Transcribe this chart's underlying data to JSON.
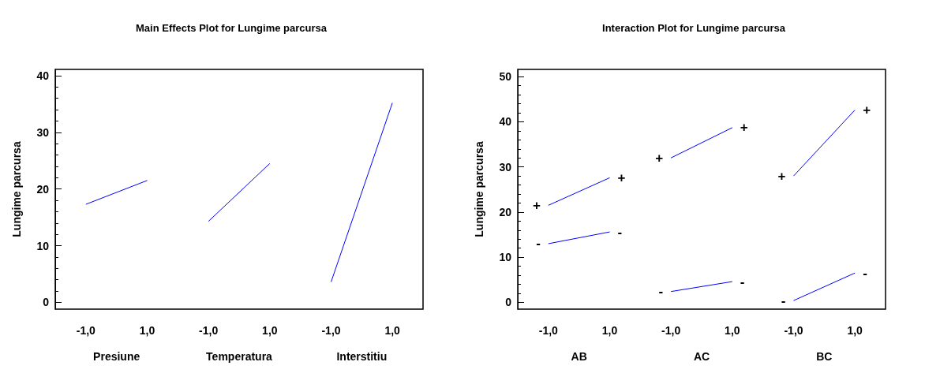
{
  "chart_data": [
    {
      "type": "line",
      "title": "Main Effects Plot for Lungime parcursa",
      "ylabel": "Lungime parcursa",
      "categories": [
        "-1,0",
        "1,0",
        "-1,0",
        "1,0",
        "-1,0",
        "1,0"
      ],
      "series": [
        {
          "color": "#0000ff",
          "values": [
            17.3,
            21.5,
            null,
            null,
            null,
            null
          ]
        },
        {
          "color": "#0000ff",
          "values": [
            null,
            null,
            14.3,
            24.5,
            null,
            null
          ]
        },
        {
          "color": "#0000ff",
          "values": [
            null,
            null,
            null,
            null,
            3.6,
            35.2
          ]
        }
      ],
      "ylim": [
        -1.2,
        41.1
      ],
      "yticks": [
        0,
        10,
        20,
        30,
        40
      ],
      "annotations": [
        "Presiune",
        "Temperatura",
        "Interstitiu"
      ],
      "marker": "none",
      "grid": false
    },
    {
      "type": "line",
      "title": "Interaction Plot for Lungime parcursa",
      "ylabel": "Lungime parcursa",
      "categories": [
        "-1,0",
        "1,0",
        "-1,0",
        "1,0",
        "-1,0",
        "1,0"
      ],
      "series": [
        {
          "name": "+",
          "color": "#0000ff",
          "values": [
            21.5,
            27.6,
            null,
            null,
            null,
            null
          ]
        },
        {
          "name": "-",
          "color": "#0000ff",
          "values": [
            13.0,
            15.6,
            null,
            null,
            null,
            null
          ]
        },
        {
          "name": "+",
          "color": "#0000ff",
          "values": [
            null,
            null,
            32.0,
            38.7,
            null,
            null
          ]
        },
        {
          "name": "-",
          "color": "#0000ff",
          "values": [
            null,
            null,
            2.4,
            4.6,
            null,
            null
          ]
        },
        {
          "name": "+",
          "color": "#0000ff",
          "values": [
            null,
            null,
            null,
            null,
            28.0,
            42.6
          ]
        },
        {
          "name": "-",
          "color": "#0000ff",
          "values": [
            null,
            null,
            null,
            null,
            0.4,
            6.5
          ]
        }
      ],
      "ylim": [
        -1.5,
        51.6
      ],
      "yticks": [
        0,
        10,
        20,
        30,
        40,
        50
      ],
      "annotations": [
        "AB",
        "AC",
        "BC"
      ],
      "marker": "none",
      "grid": false
    }
  ]
}
